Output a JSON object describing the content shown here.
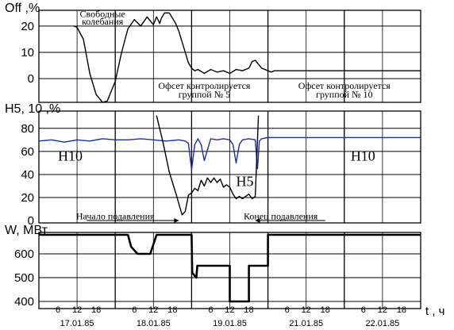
{
  "x_axis": {
    "label": "t , ч",
    "range": [
      0,
      120
    ],
    "hour_ticks": [
      {
        "x": 6,
        "label": "6"
      },
      {
        "x": 12,
        "label": "12"
      },
      {
        "x": 18,
        "label": "18"
      },
      {
        "x": 30,
        "label": "6"
      },
      {
        "x": 36,
        "label": "12"
      },
      {
        "x": 42,
        "label": "18"
      },
      {
        "x": 54,
        "label": "6"
      },
      {
        "x": 60,
        "label": "12"
      },
      {
        "x": 66,
        "label": "18"
      },
      {
        "x": 78,
        "label": "6"
      },
      {
        "x": 84,
        "label": "12"
      },
      {
        "x": 90,
        "label": "18"
      },
      {
        "x": 102,
        "label": "6"
      },
      {
        "x": 108,
        "label": "12"
      },
      {
        "x": 114,
        "label": "18"
      }
    ],
    "day_labels": [
      {
        "x": 12,
        "label": "17.01.85"
      },
      {
        "x": 36,
        "label": "18.01.85"
      },
      {
        "x": 60,
        "label": "19.01.85"
      },
      {
        "x": 84,
        "label": "21.01.85"
      },
      {
        "x": 108,
        "label": "22.01.85"
      }
    ],
    "day_boundaries": [
      24,
      48,
      72,
      96
    ]
  },
  "chart_data": [
    {
      "type": "line",
      "ylabel": "Off ,%",
      "ylim": [
        -9,
        26
      ],
      "yticks": [
        0,
        10,
        20
      ],
      "grid_y": [
        0,
        10,
        20
      ],
      "annotations": [
        {
          "text": "Свободные",
          "x": 20,
          "y": 23.5
        },
        {
          "text": "колебания",
          "x": 20,
          "y": 20.5
        },
        {
          "text": "Офсет контролируется",
          "x": 52,
          "y": -3.8
        },
        {
          "text": "группой № 5",
          "x": 52,
          "y": -7.2
        },
        {
          "text": "Офсет контролируется",
          "x": 96,
          "y": -3.8
        },
        {
          "text": "группой № 10",
          "x": 96,
          "y": -7.2
        }
      ],
      "series": [
        {
          "color": "#000000",
          "x": [
            11,
            12,
            14,
            16,
            18,
            20,
            21.5,
            24,
            26,
            28,
            30,
            32,
            34,
            36,
            37,
            38,
            38.5,
            39.5,
            41,
            42,
            43,
            44,
            45,
            46,
            47,
            48,
            49,
            50,
            52,
            54,
            56,
            58,
            60,
            62,
            64,
            66,
            67,
            68,
            70,
            72,
            73,
            74,
            78,
            84,
            90,
            96,
            102,
            108,
            114,
            120
          ],
          "y": [
            20,
            19.5,
            15,
            2,
            -6,
            -9,
            -8.5,
            -1,
            10,
            19,
            22.5,
            20,
            23.5,
            20.5,
            23.5,
            21,
            23,
            25,
            25,
            23,
            21,
            18,
            14,
            10,
            6,
            4,
            3,
            3.5,
            2,
            3.5,
            2.5,
            3,
            2,
            3.5,
            3,
            4,
            6.5,
            7,
            4,
            3,
            2.5,
            3,
            3,
            3,
            3,
            3,
            3,
            3,
            3,
            3
          ]
        }
      ]
    },
    {
      "type": "line",
      "ylabel": "H5, 10 ,%",
      "ylim": [
        -2,
        95
      ],
      "yticks": [
        0,
        20,
        40,
        60,
        80
      ],
      "grid_y": [
        20,
        40,
        60,
        80
      ],
      "annotations": [
        {
          "text": "Начало подавления",
          "x": 24,
          "y": 1
        },
        {
          "text": "Конец подавления",
          "x": 76,
          "y": 1
        }
      ],
      "series": [
        {
          "name": "H10",
          "color": "#1a2f9a",
          "x": [
            0,
            4,
            8,
            12,
            16,
            20,
            24,
            28,
            32,
            36,
            40,
            44,
            46,
            47,
            48,
            49,
            50,
            51,
            52,
            54,
            56,
            58,
            60,
            61,
            62,
            63,
            64,
            66,
            68,
            68.7,
            69.3,
            70,
            72,
            80,
            90,
            100,
            110,
            120
          ],
          "y": [
            69,
            70,
            68,
            70,
            69,
            71,
            70,
            70,
            71,
            70,
            69,
            70,
            69,
            67,
            44,
            66,
            71,
            66,
            52,
            71,
            70,
            71,
            70,
            66,
            50,
            66,
            70,
            71,
            70,
            45,
            69,
            71,
            72,
            72,
            72,
            72,
            72,
            72
          ]
        },
        {
          "name": "H5",
          "color": "#000000",
          "x": [
            37,
            39,
            41,
            43,
            45,
            46,
            47,
            48,
            49,
            50,
            51,
            52,
            53,
            54,
            55,
            56,
            57,
            58,
            59,
            60,
            61,
            62,
            63,
            64,
            65,
            66,
            67,
            68,
            69
          ],
          "y": [
            91,
            68,
            42,
            24,
            5,
            8,
            22,
            24,
            28,
            26,
            35,
            30,
            37,
            33,
            37,
            33,
            36,
            29,
            31,
            29,
            23,
            19,
            21,
            19,
            21,
            23,
            19,
            21,
            91
          ]
        }
      ]
    },
    {
      "type": "line",
      "ylabel": "W, МВт",
      "ylim": [
        370,
        690
      ],
      "yticks": [
        400,
        500,
        600
      ],
      "grid_y": [
        400,
        500,
        600
      ],
      "series": [
        {
          "color": "#000000",
          "x": [
            0,
            28,
            29,
            31,
            35,
            37,
            48,
            48.2,
            49.5,
            49.8,
            51,
            60,
            60,
            66,
            66,
            71,
            72,
            72,
            120
          ],
          "y": [
            680,
            680,
            630,
            600,
            600,
            680,
            680,
            520,
            500,
            550,
            550,
            550,
            400,
            400,
            550,
            550,
            550,
            680,
            680
          ]
        }
      ]
    }
  ]
}
